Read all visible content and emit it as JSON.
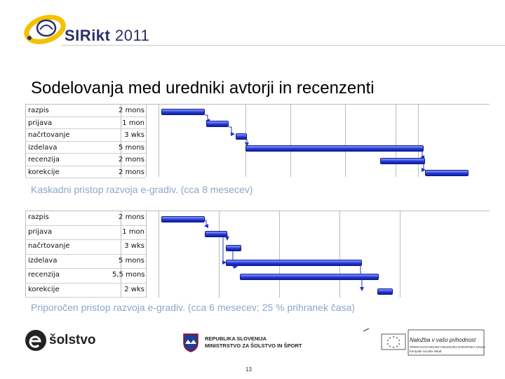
{
  "header": {
    "logo_text_a": "SIR",
    "logo_text_b": "ikt",
    "logo_text_c": " 2011"
  },
  "slide": {
    "title": "Sodelovanja med uredniki avtorji in recenzenti",
    "page_number": "13"
  },
  "gantt_top": {
    "caption": "Kaskadni pristop razvoja e-gradiv. (cca 8 mesecev)",
    "tasks": [
      {
        "name": "razpis",
        "duration": "2 mons"
      },
      {
        "name": "prijava",
        "duration": "1 mon"
      },
      {
        "name": "načrtovanje",
        "duration": "3 wks"
      },
      {
        "name": "izdelava",
        "duration": "5 mons"
      },
      {
        "name": "recenzija",
        "duration": "2 mons"
      },
      {
        "name": "korekcije",
        "duration": "2 mons"
      }
    ]
  },
  "gantt_bottom": {
    "caption": "Priporočen pristop razvoja e-gradiv. (cca 6 mesecev;  25 % prihranek časa)",
    "tasks": [
      {
        "name": "razpis",
        "duration": "2 mons"
      },
      {
        "name": "prijava",
        "duration": "1 mon"
      },
      {
        "name": "načrtovanje",
        "duration": "3 wks"
      },
      {
        "name": "izdelava",
        "duration": "5 mons"
      },
      {
        "name": "recenzija",
        "duration": "5,5 mons"
      },
      {
        "name": "korekcije",
        "duration": "2 wks"
      }
    ]
  },
  "footer": {
    "esolstvo": "šolstvo",
    "ministry_line1": "REPUBLIKA SLOVENIJA",
    "ministry_line2": "MINISTRSTVO ZA ŠOLSTVO IN ŠPORT",
    "eu_slogan": "Naložba v vašo prihodnost",
    "eu_line1": "OPERACIJO DELNO FINANCIRA EVROPSKA UNIJA",
    "eu_line2": "Evropski socialni sklad"
  },
  "colors": {
    "bar": "#1d33d6",
    "caption": "#8aa7c9",
    "logo_yellow": "#f2c200",
    "logo_navy": "#2a2f66"
  }
}
